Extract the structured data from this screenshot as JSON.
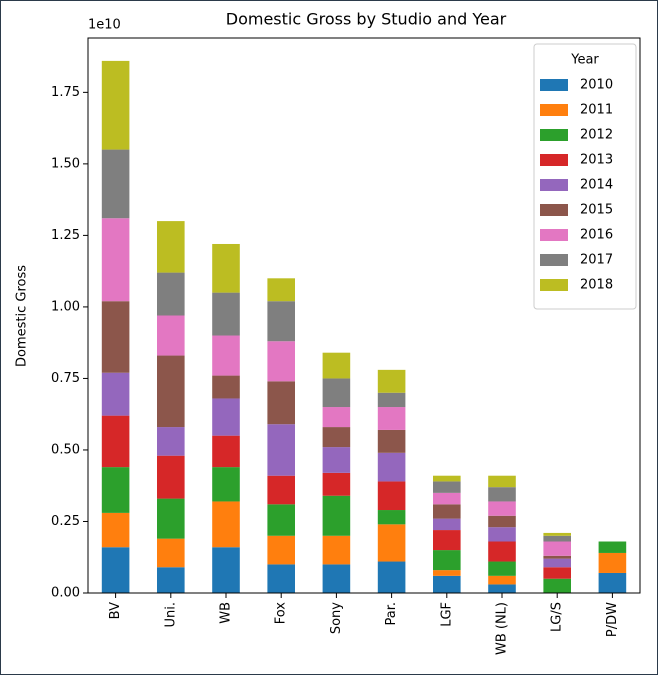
{
  "chart_data": {
    "type": "bar",
    "stacked": true,
    "title": "Domestic Gross by Studio and Year",
    "y_label": "Domestic Gross",
    "y_offset_label": "1e10",
    "legend_title": "Year",
    "legend_position": "upper right",
    "categories": [
      "BV",
      "Uni.",
      "WB",
      "Fox",
      "Sony",
      "Par.",
      "LGF",
      "WB (NL)",
      "LG/S",
      "P/DW"
    ],
    "series": [
      {
        "name": "2010",
        "color": "#1f77b4",
        "values": [
          0.16,
          0.09,
          0.16,
          0.1,
          0.1,
          0.11,
          0.06,
          0.03,
          0,
          0.07
        ]
      },
      {
        "name": "2011",
        "color": "#ff7f0e",
        "values": [
          0.12,
          0.1,
          0.16,
          0.1,
          0.1,
          0.13,
          0.02,
          0.03,
          0,
          0.07
        ]
      },
      {
        "name": "2012",
        "color": "#2ca02c",
        "values": [
          0.16,
          0.14,
          0.12,
          0.11,
          0.14,
          0.05,
          0.07,
          0.05,
          0.05,
          0.04
        ]
      },
      {
        "name": "2013",
        "color": "#d62728",
        "values": [
          0.18,
          0.15,
          0.11,
          0.1,
          0.08,
          0.1,
          0.07,
          0.07,
          0.04,
          0
        ]
      },
      {
        "name": "2014",
        "color": "#9467bd",
        "values": [
          0.15,
          0.1,
          0.13,
          0.18,
          0.09,
          0.1,
          0.04,
          0.05,
          0.03,
          0
        ]
      },
      {
        "name": "2015",
        "color": "#8c564b",
        "values": [
          0.25,
          0.25,
          0.08,
          0.15,
          0.07,
          0.08,
          0.05,
          0.04,
          0.01,
          0
        ]
      },
      {
        "name": "2016",
        "color": "#e377c2",
        "values": [
          0.29,
          0.14,
          0.14,
          0.14,
          0.07,
          0.08,
          0.04,
          0.05,
          0.05,
          0
        ]
      },
      {
        "name": "2017",
        "color": "#7f7f7f",
        "values": [
          0.24,
          0.15,
          0.15,
          0.14,
          0.1,
          0.05,
          0.04,
          0.05,
          0.02,
          0
        ]
      },
      {
        "name": "2018",
        "color": "#bcbd22",
        "values": [
          0.31,
          0.18,
          0.17,
          0.08,
          0.09,
          0.08,
          0.02,
          0.04,
          0.01,
          0
        ]
      }
    ],
    "ylim": [
      0,
      1.94
    ],
    "yticks": [
      {
        "value": 0,
        "label": "0.00"
      },
      0.25,
      {
        "value": 0.5,
        "label": "0.50"
      },
      0.75,
      {
        "value": 1,
        "label": "1.00"
      },
      1.25,
      {
        "value": 1.5,
        "label": "1.50"
      },
      1.75
    ],
    "grid": false
  }
}
